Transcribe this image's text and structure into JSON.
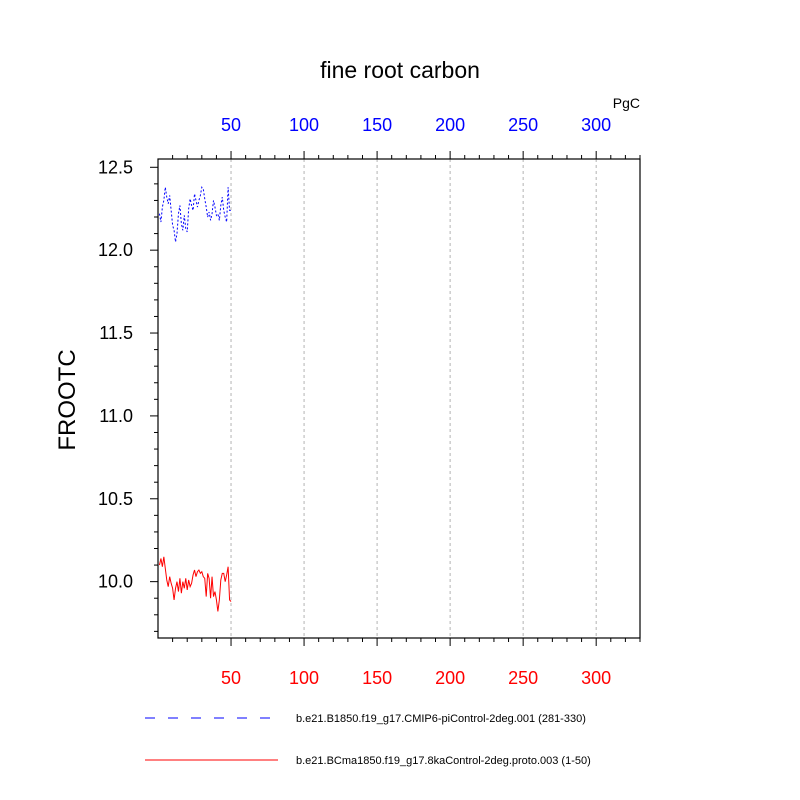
{
  "chart_data": {
    "type": "line",
    "title": "fine root carbon",
    "ylabel": "FROOTC",
    "units": "PgC",
    "xlim": [
      0,
      330
    ],
    "ylim": [
      9.66,
      12.55
    ],
    "x_ticks": [
      50,
      100,
      150,
      200,
      250,
      300
    ],
    "x_tick_labels": [
      "50",
      "100",
      "150",
      "200",
      "250",
      "300"
    ],
    "y_ticks": [
      10.0,
      10.5,
      11.0,
      11.5,
      12.0,
      12.5
    ],
    "y_tick_labels": [
      "10.0",
      "10.5",
      "11.0",
      "11.5",
      "12.0",
      "12.5"
    ],
    "top_axis_color": "#0000ff",
    "bottom_axis_color": "#ff0000",
    "grid": "vertical dashed at major x ticks",
    "series": [
      {
        "name": "b.e21.B1850.f19_g17.CMIP6-piControl-2deg.001 (281-330)",
        "color": "#0000ff",
        "dash": "dashed",
        "x": [
          1,
          2,
          3,
          4,
          5,
          6,
          7,
          8,
          9,
          10,
          11,
          12,
          13,
          14,
          15,
          16,
          17,
          18,
          19,
          20,
          21,
          22,
          23,
          24,
          25,
          26,
          27,
          28,
          29,
          30,
          31,
          32,
          33,
          34,
          35,
          36,
          37,
          38,
          39,
          40,
          41,
          42,
          43,
          44,
          45,
          46,
          47,
          48,
          49,
          50
        ],
        "values": [
          12.22,
          12.17,
          12.26,
          12.3,
          12.38,
          12.32,
          12.28,
          12.33,
          12.24,
          12.15,
          12.12,
          12.05,
          12.1,
          12.22,
          12.27,
          12.16,
          12.12,
          12.21,
          12.13,
          12.11,
          12.25,
          12.31,
          12.27,
          12.24,
          12.34,
          12.3,
          12.26,
          12.3,
          12.33,
          12.38,
          12.37,
          12.31,
          12.26,
          12.2,
          12.23,
          12.18,
          12.22,
          12.3,
          12.26,
          12.21,
          12.22,
          12.18,
          12.27,
          12.32,
          12.24,
          12.2,
          12.17,
          12.38,
          12.24,
          12.24
        ]
      },
      {
        "name": "b.e21.BCma1850.f19_g17.8kaControl-2deg.proto.003 (1-50)",
        "color": "#ff0000",
        "dash": "solid",
        "x": [
          1,
          2,
          3,
          4,
          5,
          6,
          7,
          8,
          9,
          10,
          11,
          12,
          13,
          14,
          15,
          16,
          17,
          18,
          19,
          20,
          21,
          22,
          23,
          24,
          25,
          26,
          27,
          28,
          29,
          30,
          31,
          32,
          33,
          34,
          35,
          36,
          37,
          38,
          39,
          40,
          41,
          42,
          43,
          44,
          45,
          46,
          47,
          48,
          49,
          50
        ],
        "values": [
          10.1,
          10.14,
          10.09,
          10.15,
          10.08,
          10.01,
          9.97,
          10.03,
          9.99,
          9.96,
          9.89,
          9.96,
          10.0,
          9.94,
          10.02,
          9.93,
          10.0,
          9.96,
          10.02,
          9.95,
          10.01,
          9.97,
          9.99,
          10.04,
          10.07,
          10.03,
          10.06,
          10.07,
          10.05,
          10.06,
          10.03,
          10.02,
          9.91,
          10.05,
          10.02,
          9.9,
          10.03,
          9.91,
          9.94,
          9.89,
          9.82,
          9.89,
          10.01,
          10.05,
          10.05,
          10.0,
          10.04,
          10.09,
          9.89,
          9.88
        ]
      }
    ]
  }
}
